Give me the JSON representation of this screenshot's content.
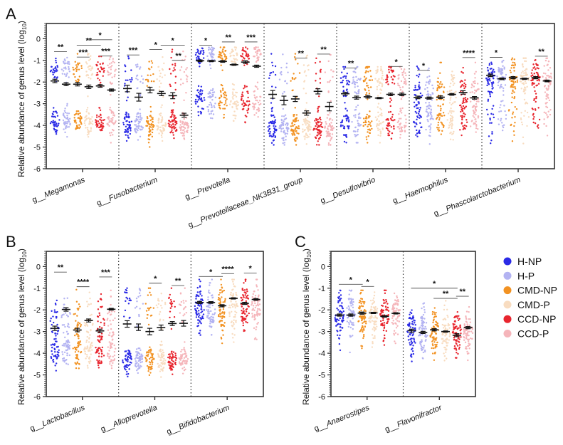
{
  "chart_data": {
    "type": "scatter",
    "ylabel": "Relative abundance of genus level (log10)",
    "ylabel_main": "Relative abundance of genus level (log",
    "ylabel_sub": "10",
    "ylabel_end": ")",
    "ylim": [
      -6,
      0.7
    ],
    "yticks": [
      "0",
      "-1",
      "-2",
      "-3",
      "-4",
      "-5",
      "-6"
    ],
    "groups": [
      "H-NP",
      "H-P",
      "CMD-NP",
      "CMD-P",
      "CCD-NP",
      "CCD-P"
    ],
    "colors": [
      "#2b2be6",
      "#b3b3f2",
      "#f29222",
      "#f8dcc0",
      "#e8252e",
      "#f5b5ba"
    ],
    "legend": {
      "position": "right",
      "entries": [
        "H-NP",
        "H-P",
        "CMD-NP",
        "CMD-P",
        "CCD-NP",
        "CCD-P"
      ]
    },
    "prefix": "g__",
    "panels": [
      {
        "letter": "A",
        "genera": [
          {
            "name": "Megamonas",
            "means": [
              -1.95,
              -2.1,
              -2.1,
              -2.22,
              -2.18,
              -2.37
            ],
            "sem": [
              0.08,
              0.07,
              0.08,
              0.08,
              0.06,
              0.05
            ],
            "clusters": [
              [
                -1.4,
                0.35,
                0.4
              ],
              [
                -3.8,
                0.3,
                0.6
              ]
            ],
            "range": [
              -5.0,
              -0.7
            ],
            "sig": [
              {
                "a": 0,
                "b": 1,
                "y": -0.6,
                "label": "**"
              },
              {
                "a": 2,
                "b": 3,
                "y": -0.85,
                "label": "***"
              },
              {
                "a": 4,
                "b": 5,
                "y": -0.8,
                "label": "***"
              },
              {
                "a": 2,
                "b": 4,
                "y": -0.3,
                "label": "**"
              },
              {
                "a": 3,
                "b": 5,
                "y": -0.05,
                "label": "*"
              }
            ]
          },
          {
            "name": "Fusobacterium",
            "means": [
              -2.3,
              -2.7,
              -2.37,
              -2.53,
              -2.63,
              -3.53
            ],
            "sem": [
              0.15,
              0.18,
              0.13,
              0.1,
              0.14,
              0.09
            ],
            "clusters": [
              [
                -1.8,
                0.5,
                0.25
              ],
              [
                -4.0,
                0.35,
                0.75
              ]
            ],
            "range": [
              -5.1,
              -0.5
            ],
            "sig": [
              {
                "a": 0,
                "b": 1,
                "y": -0.75,
                "label": "***"
              },
              {
                "a": 2,
                "b": 3,
                "y": -0.5,
                "label": "*"
              },
              {
                "a": 3,
                "b": 5,
                "y": -0.3,
                "label": "*"
              },
              {
                "a": 4,
                "b": 5,
                "y": -1.0,
                "label": "**"
              }
            ]
          },
          {
            "name": "Prevotella",
            "means": [
              -1.02,
              -1.03,
              -1.05,
              -1.2,
              -1.08,
              -1.27
            ],
            "sem": [
              0.04,
              0.03,
              0.04,
              0.03,
              0.06,
              0.05
            ],
            "clusters": [
              [
                -0.75,
                0.25,
                0.45
              ],
              [
                -2.9,
                0.4,
                0.55
              ]
            ],
            "range": [
              -4.6,
              -0.4
            ],
            "sig": [
              {
                "a": 0,
                "b": 1,
                "y": -0.3,
                "label": "*"
              },
              {
                "a": 2,
                "b": 3,
                "y": -0.15,
                "label": "**"
              },
              {
                "a": 4,
                "b": 5,
                "y": -0.15,
                "label": "***"
              }
            ]
          },
          {
            "name": "Prevotellaceae_NK3B31_group",
            "means": [
              -2.57,
              -2.85,
              -2.78,
              -3.43,
              -2.43,
              -3.13
            ],
            "sem": [
              0.18,
              0.2,
              0.12,
              0.1,
              0.12,
              0.2
            ],
            "clusters": [
              [
                -1.8,
                0.6,
                0.2
              ],
              [
                -4.1,
                0.35,
                0.8
              ]
            ],
            "range": [
              -4.9,
              -0.7
            ],
            "sig": [
              {
                "a": 2,
                "b": 3,
                "y": -0.9,
                "label": "**"
              },
              {
                "a": 4,
                "b": 5,
                "y": -0.71,
                "label": "**"
              }
            ]
          },
          {
            "name": "Desulfovibrio",
            "means": [
              -2.54,
              -2.72,
              -2.68,
              -2.74,
              -2.57,
              -2.57
            ],
            "sem": [
              0.07,
              0.07,
              0.06,
              0.03,
              0.06,
              0.06
            ],
            "clusters": [
              [
                -1.9,
                0.4,
                0.5
              ],
              [
                -3.9,
                0.4,
                0.5
              ]
            ],
            "range": [
              -4.8,
              -1.3
            ],
            "sig": [
              {
                "a": 0,
                "b": 1,
                "y": -1.35,
                "label": "**"
              },
              {
                "a": 4,
                "b": 5,
                "y": -1.28,
                "label": "*"
              }
            ]
          },
          {
            "name": "Haemophilus",
            "means": [
              -2.71,
              -2.74,
              -2.7,
              -2.57,
              -2.48,
              -2.73
            ],
            "sem": [
              0.06,
              0.05,
              0.06,
              0.04,
              0.08,
              0.06
            ],
            "clusters": [
              [
                -2.6,
                0.6,
                0.6
              ],
              [
                -3.8,
                0.4,
                0.4
              ]
            ],
            "range": [
              -5.0,
              -1.1
            ],
            "sig": [
              {
                "a": 0,
                "b": 1,
                "y": -1.46,
                "label": "*"
              },
              {
                "a": 4,
                "b": 5,
                "y": -0.87,
                "label": "****"
              }
            ]
          },
          {
            "name": "Phascolarctobacterium",
            "means": [
              -1.69,
              -1.85,
              -1.8,
              -1.85,
              -1.8,
              -1.95
            ],
            "sem": [
              0.06,
              0.04,
              0.05,
              0.03,
              0.05,
              0.04
            ],
            "clusters": [
              [
                -1.8,
                0.45,
                0.75
              ],
              [
                -3.5,
                0.5,
                0.25
              ]
            ],
            "range": [
              -5.0,
              -0.9
            ],
            "sig": [
              {
                "a": 0,
                "b": 1,
                "y": -0.86,
                "label": "*"
              },
              {
                "a": 4,
                "b": 5,
                "y": -0.81,
                "label": "**"
              }
            ]
          }
        ]
      },
      {
        "letter": "B",
        "genera": [
          {
            "name": "Lactobacillus",
            "means": [
              -2.85,
              -1.98,
              -2.93,
              -2.49,
              -2.97,
              -1.97
            ],
            "sem": [
              0.1,
              0.08,
              0.08,
              0.07,
              0.08,
              0.04
            ],
            "clusters": [
              [
                -2.5,
                0.6,
                0.45
              ],
              [
                -3.9,
                0.4,
                0.55
              ]
            ],
            "range": [
              -5.5,
              -0.5
            ],
            "sig": [
              {
                "a": 0,
                "b": 1,
                "y": -0.26,
                "label": "**"
              },
              {
                "a": 2,
                "b": 3,
                "y": -0.93,
                "label": "****"
              },
              {
                "a": 4,
                "b": 5,
                "y": -0.48,
                "label": "***"
              }
            ]
          },
          {
            "name": "Alloprevotella",
            "means": [
              -2.65,
              -2.8,
              -3.0,
              -2.82,
              -2.63,
              -2.62
            ],
            "sem": [
              0.15,
              0.15,
              0.15,
              0.12,
              0.09,
              0.13
            ],
            "clusters": [
              [
                -1.8,
                0.5,
                0.25
              ],
              [
                -4.3,
                0.3,
                0.75
              ]
            ],
            "range": [
              -5.1,
              -1.0
            ],
            "sig": [
              {
                "a": 2,
                "b": 3,
                "y": -0.77,
                "label": "*"
              },
              {
                "a": 4,
                "b": 5,
                "y": -0.88,
                "label": "**"
              }
            ]
          },
          {
            "name": "Bifidobacterium",
            "means": [
              -1.66,
              -1.66,
              -1.81,
              -1.47,
              -1.7,
              -1.52
            ],
            "sem": [
              0.05,
              0.04,
              0.05,
              0.03,
              0.05,
              0.04
            ],
            "clusters": [
              [
                -1.9,
                0.6,
                1.0
              ]
            ],
            "range": [
              -4.8,
              -0.6
            ],
            "sig": [
              {
                "a": 0,
                "b": 2,
                "y": -0.46,
                "label": "*"
              },
              {
                "a": 2,
                "b": 3,
                "y": -0.33,
                "label": "****"
              },
              {
                "a": 4,
                "b": 5,
                "y": -0.3,
                "label": "*"
              }
            ]
          }
        ]
      },
      {
        "letter": "C",
        "genera": [
          {
            "name": "Anaerostipes",
            "means": [
              -2.24,
              -2.24,
              -2.15,
              -2.14,
              -2.3,
              -2.16
            ],
            "sem": [
              0.05,
              0.05,
              0.05,
              0.03,
              0.04,
              0.03
            ],
            "clusters": [
              [
                -2.3,
                0.55,
                1.0
              ]
            ],
            "range": [
              -4.1,
              -1.1
            ],
            "sig": [
              {
                "a": 0,
                "b": 2,
                "y": -0.82,
                "label": "*"
              },
              {
                "a": 2,
                "b": 3,
                "y": -0.92,
                "label": "*"
              }
            ]
          },
          {
            "name": "Flavonifractor",
            "means": [
              -2.96,
              -3.04,
              -2.92,
              -3.0,
              -3.17,
              -2.82
            ],
            "sem": [
              0.07,
              0.05,
              0.05,
              0.03,
              0.07,
              0.05
            ],
            "clusters": [
              [
                -3.05,
                0.55,
                1.0
              ]
            ],
            "range": [
              -5.3,
              -1.5
            ],
            "sig": [
              {
                "a": 0,
                "b": 4,
                "y": -1.0,
                "label": "*"
              },
              {
                "a": 2,
                "b": 4,
                "y": -1.47,
                "label": "**"
              },
              {
                "a": 4,
                "b": 5,
                "y": -1.37,
                "label": "**"
              }
            ]
          }
        ]
      }
    ]
  }
}
